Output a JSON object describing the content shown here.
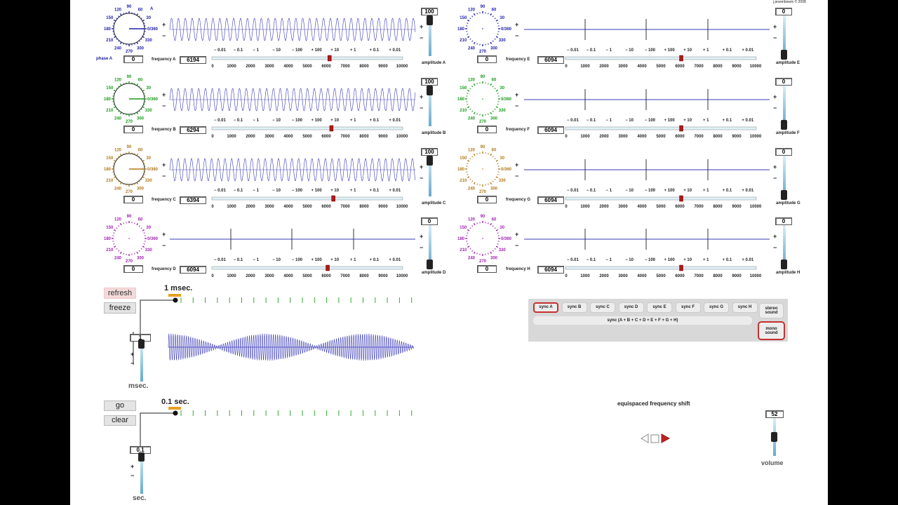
{
  "copyright": "j.jesembowm © 2008",
  "axis_ticks": [
    "0",
    "1000",
    "2000",
    "3000",
    "4000",
    "5000",
    "6000",
    "7000",
    "8000",
    "9000",
    "10000"
  ],
  "step_labels": [
    "− 0.01",
    "− 0.1",
    "− 1",
    "− 10",
    "− 100",
    "+ 100",
    "+ 10",
    "+ 1",
    "+ 0.1",
    "+ 0.01"
  ],
  "dial_labels": [
    "120",
    "90",
    "60",
    "30",
    "0/360",
    "330",
    "300",
    "270",
    "240",
    "210",
    "180",
    "150"
  ],
  "plus": "+",
  "minus": "−",
  "channels": [
    {
      "id": "A",
      "color": "#2020a8",
      "phase": "0",
      "phase_label": "phase A",
      "frequency_label": "frequency A",
      "frequency": "6194",
      "freq_value": 6194,
      "amplitude": "100",
      "amplitude_label": "amplitude A",
      "corner_label": "A"
    },
    {
      "id": "B",
      "color": "#1a9a1a",
      "phase": "0",
      "frequency_label": "frequency B",
      "frequency": "6294",
      "freq_value": 6294,
      "amplitude": "100",
      "amplitude_label": "amplitude B"
    },
    {
      "id": "C",
      "color": "#b07818",
      "phase": "0",
      "frequency_label": "frequency C",
      "frequency": "6394",
      "freq_value": 6394,
      "amplitude": "100",
      "amplitude_label": "amplitude C"
    },
    {
      "id": "D",
      "color": "#a020b0",
      "phase": "0",
      "frequency_label": "frequency D",
      "frequency": "6094",
      "freq_value": 6094,
      "amplitude": "0",
      "amplitude_label": "amplitude D"
    },
    {
      "id": "E",
      "color": "#2020a8",
      "phase": "0",
      "frequency_label": "frequency E",
      "frequency": "6094",
      "freq_value": 6094,
      "amplitude": "0",
      "amplitude_label": "amplitude E"
    },
    {
      "id": "F",
      "color": "#1a9a1a",
      "phase": "0",
      "frequency_label": "frequency F",
      "frequency": "6094",
      "freq_value": 6094,
      "amplitude": "0",
      "amplitude_label": "amplitude F"
    },
    {
      "id": "G",
      "color": "#b07818",
      "phase": "0",
      "frequency_label": "frequency G",
      "frequency": "6094",
      "freq_value": 6094,
      "amplitude": "0",
      "amplitude_label": "amplitude G"
    },
    {
      "id": "H",
      "color": "#a020b0",
      "phase": "0",
      "frequency_label": "frequency H",
      "frequency": "6094",
      "freq_value": 6094,
      "amplitude": "0",
      "amplitude_label": "amplitude H"
    }
  ],
  "controls": {
    "refresh": "refresh",
    "freeze": "freeze",
    "go": "go",
    "clear": "clear"
  },
  "timeline1": {
    "label": "1 msec.",
    "value": "1",
    "unit": "msec."
  },
  "timeline2": {
    "label": "0.1 sec.",
    "value": "0.1",
    "unit": "sec."
  },
  "sync": {
    "buttons": [
      "sync A",
      "sync B",
      "sync C",
      "sync D",
      "sync E",
      "sync F",
      "sync G",
      "sync H"
    ],
    "all": "sync (A + B + C + D + E + F + G + H)",
    "stereo": "stereo sound",
    "mono": "mono sound"
  },
  "shift_label": "equispaced frequency shift",
  "volume": {
    "value": "52",
    "label": "volume"
  }
}
